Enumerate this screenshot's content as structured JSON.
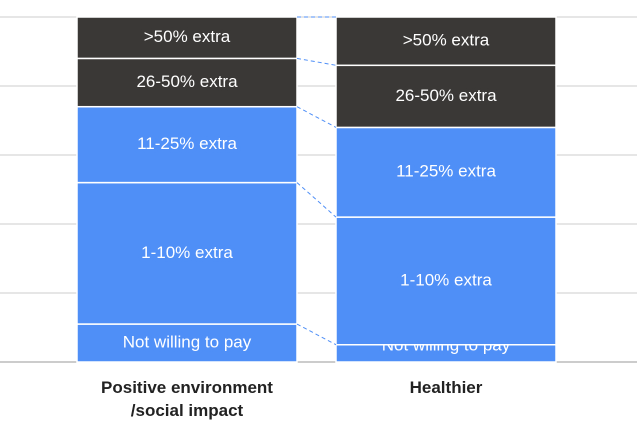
{
  "chart_data": {
    "type": "stacked_bar",
    "categories": [
      "Positive environment /social impact",
      "Healthier"
    ],
    "series": [
      {
        "name": "Not willing to pay",
        "color": "#4f8ff7",
        "values": [
          11,
          5
        ]
      },
      {
        "name": "1-10% extra",
        "color": "#4f8ff7",
        "values": [
          41,
          37
        ]
      },
      {
        "name": "11-25% extra",
        "color": "#4f8ff7",
        "values": [
          22,
          26
        ]
      },
      {
        "name": "26-50% extra",
        "color": "#3a3836",
        "values": [
          14,
          18
        ]
      },
      {
        "name": ">50% extra",
        "color": "#3a3836",
        "values": [
          12,
          14
        ]
      }
    ],
    "ylim": [
      0,
      100
    ],
    "yticks": [
      0,
      20,
      40,
      60,
      80,
      100
    ],
    "grid": true
  }
}
